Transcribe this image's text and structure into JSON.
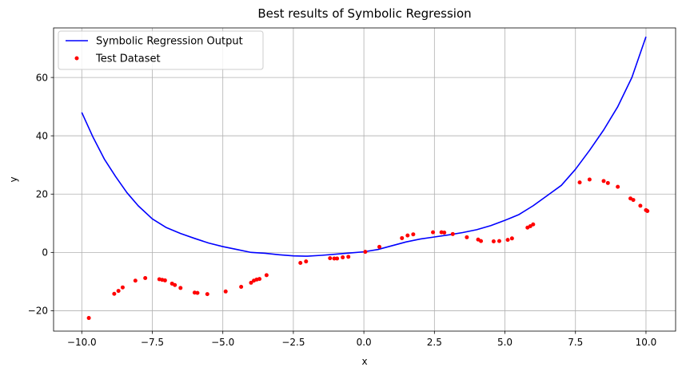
{
  "chart_data": {
    "type": "line",
    "title": "Best results of Symbolic Regression",
    "xlabel": "x",
    "ylabel": "y",
    "xlim": [
      -11,
      11.05
    ],
    "ylim": [
      -27,
      77
    ],
    "grid": true,
    "legend_position": "top-left",
    "x_ticks": [
      -10,
      -7.5,
      -5,
      -2.5,
      0,
      2.5,
      5,
      7.5,
      10
    ],
    "x_tick_labels": [
      "−10.0",
      "−7.5",
      "−5.0",
      "−2.5",
      "0.0",
      "2.5",
      "5.0",
      "7.5",
      "10.0"
    ],
    "y_ticks": [
      -20,
      0,
      20,
      40,
      60
    ],
    "y_tick_labels": [
      "−20",
      "0",
      "20",
      "40",
      "60"
    ],
    "series": [
      {
        "name": "Symbolic Regression Output",
        "kind": "line",
        "color": "#0000ff",
        "x": [
          -10,
          -9.6,
          -9.2,
          -8.8,
          -8.4,
          -8.0,
          -7.5,
          -7.0,
          -6.5,
          -6.0,
          -5.5,
          -5.0,
          -4.5,
          -4.0,
          -3.5,
          -3.0,
          -2.5,
          -2.0,
          -1.5,
          -1.0,
          -0.5,
          0,
          0.5,
          1.0,
          1.5,
          2.0,
          2.5,
          3.0,
          3.5,
          4.0,
          4.5,
          5.0,
          5.5,
          6.0,
          6.5,
          7.0,
          7.5,
          8.0,
          8.5,
          9.0,
          9.5,
          10.0
        ],
        "y": [
          48,
          39.5,
          32,
          26,
          20.5,
          16,
          11.5,
          8.5,
          6.5,
          4.8,
          3.2,
          2.0,
          1.0,
          0,
          -0.3,
          -0.8,
          -1.2,
          -1.3,
          -1.0,
          -0.6,
          -0.2,
          0.2,
          1.0,
          2.3,
          3.6,
          4.6,
          5.3,
          6.0,
          6.8,
          7.8,
          9.2,
          11.0,
          13.0,
          16.0,
          19.5,
          23.0,
          28.5,
          35,
          42,
          50,
          60,
          74
        ]
      },
      {
        "name": "Test Dataset",
        "kind": "scatter",
        "color": "#ff0000",
        "x": [
          -9.75,
          -8.85,
          -8.7,
          -8.55,
          -8.1,
          -7.75,
          -7.25,
          -7.15,
          -7.05,
          -6.8,
          -6.7,
          -6.5,
          -6.0,
          -5.9,
          -5.55,
          -4.9,
          -4.35,
          -4.0,
          -3.9,
          -3.8,
          -3.7,
          -3.45,
          -2.25,
          -2.05,
          -1.2,
          -1.05,
          -0.95,
          -0.75,
          -0.55,
          0.05,
          0.55,
          1.35,
          1.55,
          1.75,
          2.45,
          2.75,
          2.85,
          3.15,
          3.65,
          4.05,
          4.15,
          4.6,
          4.8,
          5.1,
          5.25,
          5.8,
          5.9,
          6.0,
          7.65,
          8.0,
          8.5,
          8.65,
          9.0,
          9.45,
          9.55,
          9.8,
          10.0,
          10.05
        ],
        "y": [
          -22.5,
          -14.2,
          -13.2,
          -12.0,
          -9.7,
          -8.8,
          -9.2,
          -9.4,
          -9.6,
          -10.7,
          -11.2,
          -12.2,
          -13.8,
          -13.9,
          -14.3,
          -13.4,
          -11.8,
          -10.4,
          -9.7,
          -9.3,
          -9.1,
          -7.8,
          -3.6,
          -3.1,
          -2.0,
          -2.1,
          -2.1,
          -1.7,
          -1.5,
          0.2,
          1.9,
          4.9,
          5.8,
          6.2,
          6.9,
          6.9,
          6.8,
          6.3,
          5.2,
          4.4,
          3.9,
          3.8,
          3.9,
          4.3,
          4.8,
          8.5,
          9.0,
          9.6,
          24.0,
          25.0,
          24.5,
          23.8,
          22.5,
          18.5,
          18.0,
          16.0,
          14.5,
          14.2
        ]
      }
    ]
  }
}
